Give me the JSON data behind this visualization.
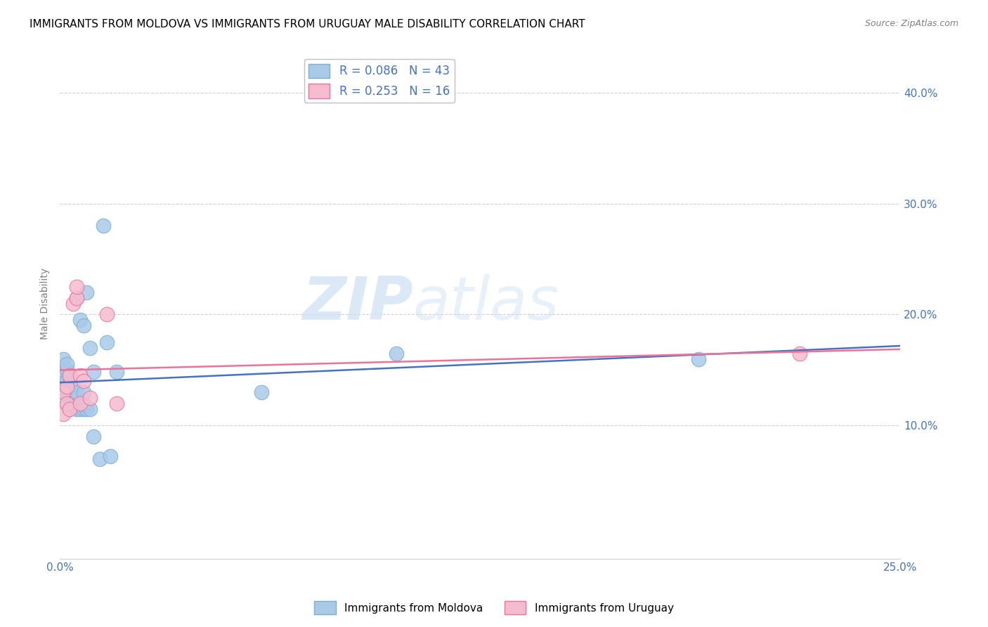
{
  "title": "IMMIGRANTS FROM MOLDOVA VS IMMIGRANTS FROM URUGUAY MALE DISABILITY CORRELATION CHART",
  "source": "Source: ZipAtlas.com",
  "ylabel": "Male Disability",
  "xlim": [
    0.0,
    0.25
  ],
  "ylim": [
    -0.02,
    0.44
  ],
  "xticks": [
    0.0,
    0.05,
    0.1,
    0.15,
    0.2,
    0.25
  ],
  "yticks": [
    0.1,
    0.2,
    0.3,
    0.4
  ],
  "ytick_labels": [
    "10.0%",
    "20.0%",
    "30.0%",
    "40.0%"
  ],
  "xtick_labels": [
    "0.0%",
    "",
    "",
    "",
    "",
    "25.0%"
  ],
  "moldova_color": "#aac9e8",
  "moldova_edge": "#7aafd4",
  "uruguay_color": "#f5bcd0",
  "uruguay_edge": "#f07098",
  "moldova_line_color": "#4472c4",
  "uruguay_line_color": "#f07098",
  "moldova_R": 0.086,
  "moldova_N": 43,
  "uruguay_R": 0.253,
  "uruguay_N": 16,
  "title_fontsize": 11,
  "axis_label_fontsize": 10,
  "tick_fontsize": 11,
  "legend_fontsize": 12,
  "watermark_zip": "ZIP",
  "watermark_atlas": "atlas",
  "moldova_x": [
    0.001,
    0.001,
    0.001,
    0.001,
    0.002,
    0.002,
    0.002,
    0.002,
    0.002,
    0.003,
    0.003,
    0.003,
    0.003,
    0.004,
    0.004,
    0.004,
    0.004,
    0.005,
    0.005,
    0.005,
    0.005,
    0.005,
    0.005,
    0.006,
    0.006,
    0.007,
    0.007,
    0.007,
    0.007,
    0.008,
    0.008,
    0.009,
    0.009,
    0.01,
    0.01,
    0.012,
    0.013,
    0.014,
    0.015,
    0.017,
    0.06,
    0.1,
    0.19
  ],
  "moldova_y": [
    0.13,
    0.14,
    0.15,
    0.16,
    0.12,
    0.13,
    0.14,
    0.15,
    0.155,
    0.115,
    0.125,
    0.13,
    0.145,
    0.118,
    0.123,
    0.128,
    0.135,
    0.115,
    0.118,
    0.12,
    0.125,
    0.13,
    0.215,
    0.115,
    0.195,
    0.115,
    0.12,
    0.13,
    0.19,
    0.115,
    0.22,
    0.115,
    0.17,
    0.09,
    0.148,
    0.07,
    0.28,
    0.175,
    0.072,
    0.148,
    0.13,
    0.165,
    0.16
  ],
  "uruguay_x": [
    0.001,
    0.001,
    0.002,
    0.002,
    0.003,
    0.003,
    0.004,
    0.005,
    0.005,
    0.006,
    0.006,
    0.007,
    0.009,
    0.014,
    0.017,
    0.22
  ],
  "uruguay_y": [
    0.11,
    0.13,
    0.12,
    0.135,
    0.115,
    0.145,
    0.21,
    0.215,
    0.225,
    0.12,
    0.145,
    0.14,
    0.125,
    0.2,
    0.12,
    0.165
  ]
}
